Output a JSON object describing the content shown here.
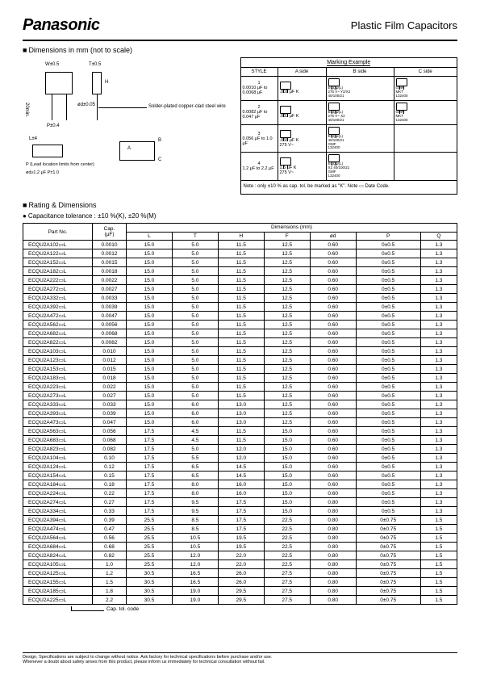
{
  "header": {
    "logo": "Panasonic",
    "title": "Plastic Film Capacitors"
  },
  "sect1": "Dimensions in mm (not to scale)",
  "diag": {
    "t": "T±0.5",
    "w": "W±0.5",
    "h": "H",
    "sold": "Solder-plated copper-clad steel wire",
    "min20": "20min.",
    "p04": "P±0.4",
    "d005": "ød±0.05",
    "note1": "P (Lead location limits from center)",
    "note2": "ød≥1.2 μF P±1.0",
    "l14": "L±4",
    "a": "A",
    "b": "B",
    "c": "C"
  },
  "mark": {
    "title": "Marking Example",
    "hdr": [
      "STYLE",
      "A side",
      "B side",
      "C side"
    ],
    "rows": [
      {
        "s1": "1",
        "s2": "0.0010 μF to 0.0068 μF",
        "a": ".001 μF  K",
        "b": "ECQU(L)\n275 V~ Y2/X2\n40/100/21",
        "c": "GMF\nMKT\n132400"
      },
      {
        "s1": "2",
        "s2": "0.0082 μF to 0.047 μF",
        "a": ".033 μF  K",
        "b": "ECQU(L)\n275 V~ X2\n40/100/21",
        "c": "GMF\nMKT\n132400"
      },
      {
        "s1": "3",
        "s2": "0.056 μF to 1.0 μF",
        "a": ".068 μF  K\n275 V~",
        "b": "ECQU(L)\n40/100/21\nGMF\n132400",
        "c": ""
      },
      {
        "s1": "4",
        "s2": "1.2 μF to 2.2 μF",
        "a": "1.5 μF  K\n275 V~",
        "b": "ECQU(L)\nX2 40/100/21\nGMF\n132400",
        "c": ""
      }
    ],
    "note": "Note : only ±10 % as cap. tol. be marked as \"K\". Note ▭ Date Code."
  },
  "sect2": "Rating & Dimensions",
  "bullet1": "Capacitance tolerance : ±10 %(K), ±20 %(M)",
  "tbl": {
    "h1": "Part No.",
    "h2": "Cap.\n(μF)",
    "h3": "Dimensions (mm)",
    "cols": [
      "L",
      "T",
      "H",
      "F",
      "ød",
      "P",
      "Q"
    ],
    "rows": [
      [
        "ECQU2A102▭L",
        "0.0010",
        "15.0",
        "5.0",
        "11.5",
        "12.5",
        "0.60",
        "0±0.5",
        "1.3"
      ],
      [
        "ECQU2A122▭L",
        "0.0012",
        "15.0",
        "5.0",
        "11.5",
        "12.5",
        "0.60",
        "0±0.5",
        "1.3"
      ],
      [
        "ECQU2A152▭L",
        "0.0015",
        "15.0",
        "5.0",
        "11.5",
        "12.5",
        "0.60",
        "0±0.5",
        "1.3"
      ],
      [
        "ECQU2A182▭L",
        "0.0018",
        "15.0",
        "5.0",
        "11.5",
        "12.5",
        "0.60",
        "0±0.5",
        "1.3"
      ],
      [
        "ECQU2A222▭L",
        "0.0022",
        "15.0",
        "5.0",
        "11.5",
        "12.5",
        "0.60",
        "0±0.5",
        "1.3"
      ],
      [
        "ECQU2A272▭L",
        "0.0027",
        "15.0",
        "5.0",
        "11.5",
        "12.5",
        "0.60",
        "0±0.5",
        "1.3"
      ],
      [
        "ECQU2A332▭L",
        "0.0033",
        "15.0",
        "5.0",
        "11.5",
        "12.5",
        "0.60",
        "0±0.5",
        "1.3"
      ],
      [
        "ECQU2A392▭L",
        "0.0039",
        "15.0",
        "5.0",
        "11.5",
        "12.5",
        "0.60",
        "0±0.5",
        "1.3"
      ],
      [
        "ECQU2A472▭L",
        "0.0047",
        "15.0",
        "5.0",
        "11.5",
        "12.5",
        "0.60",
        "0±0.5",
        "1.3"
      ],
      [
        "ECQU2A562▭L",
        "0.0056",
        "15.0",
        "5.0",
        "11.5",
        "12.5",
        "0.60",
        "0±0.5",
        "1.3"
      ],
      [
        "ECQU2A682▭L",
        "0.0068",
        "15.0",
        "5.0",
        "11.5",
        "12.5",
        "0.60",
        "0±0.5",
        "1.3"
      ],
      [
        "ECQU2A822▭L",
        "0.0082",
        "15.0",
        "5.0",
        "11.5",
        "12.5",
        "0.60",
        "0±0.5",
        "1.3"
      ],
      [
        "ECQU2A103▭L",
        "0.010",
        "15.0",
        "5.0",
        "11.5",
        "12.5",
        "0.60",
        "0±0.5",
        "1.3"
      ],
      [
        "ECQU2A123▭L",
        "0.012",
        "15.0",
        "5.0",
        "11.5",
        "12.5",
        "0.60",
        "0±0.5",
        "1.3"
      ],
      [
        "ECQU2A153▭L",
        "0.015",
        "15.0",
        "5.0",
        "11.5",
        "12.5",
        "0.60",
        "0±0.5",
        "1.3"
      ],
      [
        "ECQU2A183▭L",
        "0.018",
        "15.0",
        "5.0",
        "11.5",
        "12.5",
        "0.60",
        "0±0.5",
        "1.3"
      ],
      [
        "ECQU2A223▭L",
        "0.022",
        "15.0",
        "5.0",
        "11.5",
        "12.5",
        "0.60",
        "0±0.5",
        "1.3"
      ],
      [
        "ECQU2A273▭L",
        "0.027",
        "15.0",
        "5.0",
        "11.5",
        "12.5",
        "0.60",
        "0±0.5",
        "1.3"
      ],
      [
        "ECQU2A333▭L",
        "0.033",
        "15.0",
        "6.0",
        "13.0",
        "12.5",
        "0.60",
        "0±0.5",
        "1.3"
      ],
      [
        "ECQU2A393▭L",
        "0.039",
        "15.0",
        "6.0",
        "13.0",
        "12.5",
        "0.60",
        "0±0.5",
        "1.3"
      ],
      [
        "ECQU2A473▭L",
        "0.047",
        "15.0",
        "6.0",
        "13.0",
        "12.5",
        "0.60",
        "0±0.5",
        "1.3"
      ],
      [
        "ECQU2A563▭L",
        "0.056",
        "17.5",
        "4.5",
        "11.5",
        "15.0",
        "0.60",
        "0±0.5",
        "1.3"
      ],
      [
        "ECQU2A683▭L",
        "0.068",
        "17.5",
        "4.5",
        "11.5",
        "15.0",
        "0.60",
        "0±0.5",
        "1.3"
      ],
      [
        "ECQU2A823▭L",
        "0.082",
        "17.5",
        "5.0",
        "12.0",
        "15.0",
        "0.60",
        "0±0.5",
        "1.3"
      ],
      [
        "ECQU2A104▭L",
        "0.10",
        "17.5",
        "5.5",
        "12.0",
        "15.0",
        "0.60",
        "0±0.5",
        "1.3"
      ],
      [
        "ECQU2A124▭L",
        "0.12",
        "17.5",
        "6.5",
        "14.5",
        "15.0",
        "0.60",
        "0±0.5",
        "1.3"
      ],
      [
        "ECQU2A154▭L",
        "0.15",
        "17.5",
        "6.5",
        "14.5",
        "15.0",
        "0.60",
        "0±0.5",
        "1.3"
      ],
      [
        "ECQU2A184▭L",
        "0.18",
        "17.5",
        "8.0",
        "16.0",
        "15.0",
        "0.60",
        "0±0.5",
        "1.3"
      ],
      [
        "ECQU2A224▭L",
        "0.22",
        "17.5",
        "8.0",
        "16.0",
        "15.0",
        "0.60",
        "0±0.5",
        "1.3"
      ],
      [
        "ECQU2A274▭L",
        "0.27",
        "17.5",
        "9.5",
        "17.5",
        "15.0",
        "0.80",
        "0±0.5",
        "1.3"
      ],
      [
        "ECQU2A334▭L",
        "0.33",
        "17.5",
        "9.5",
        "17.5",
        "15.0",
        "0.80",
        "0±0.5",
        "1.3"
      ],
      [
        "ECQU2A394▭L",
        "0.39",
        "25.5",
        "8.5",
        "17.5",
        "22.5",
        "0.80",
        "0±0.75",
        "1.5"
      ],
      [
        "ECQU2A474▭L",
        "0.47",
        "25.5",
        "8.5",
        "17.5",
        "22.5",
        "0.80",
        "0±0.75",
        "1.5"
      ],
      [
        "ECQU2A564▭L",
        "0.56",
        "25.5",
        "10.5",
        "19.5",
        "22.5",
        "0.80",
        "0±0.75",
        "1.5"
      ],
      [
        "ECQU2A684▭L",
        "0.68",
        "25.5",
        "10.5",
        "19.5",
        "22.5",
        "0.80",
        "0±0.75",
        "1.5"
      ],
      [
        "ECQU2A824▭L",
        "0.82",
        "25.5",
        "12.0",
        "22.0",
        "22.5",
        "0.80",
        "0±0.75",
        "1.5"
      ],
      [
        "ECQU2A105▭L",
        "1.0",
        "25.5",
        "12.0",
        "22.0",
        "22.5",
        "0.80",
        "0±0.75",
        "1.5"
      ],
      [
        "ECQU2A125▭L",
        "1.2",
        "30.5",
        "16.5",
        "26.0",
        "27.5",
        "0.80",
        "0±0.75",
        "1.5"
      ],
      [
        "ECQU2A155▭L",
        "1.5",
        "30.5",
        "16.5",
        "26.0",
        "27.5",
        "0.80",
        "0±0.75",
        "1.5"
      ],
      [
        "ECQU2A185▭L",
        "1.8",
        "30.5",
        "19.0",
        "29.5",
        "27.5",
        "0.80",
        "0±0.75",
        "1.5"
      ],
      [
        "ECQU2A225▭L",
        "2.2",
        "30.5",
        "19.0",
        "29.5",
        "27.5",
        "0.80",
        "0±0.75",
        "1.5"
      ]
    ]
  },
  "captol": "Cap. tol. code",
  "footer": {
    "l1": "Design, Specifications are subject to change without notice.    Ask factory for technical specifications before purchase and/or use.",
    "l2": "Whenever a doubt about safety arises from this product, please inform us immediately for technical consultation without fail."
  },
  "colors": {
    "fg": "#000000",
    "bg": "#ffffff"
  }
}
